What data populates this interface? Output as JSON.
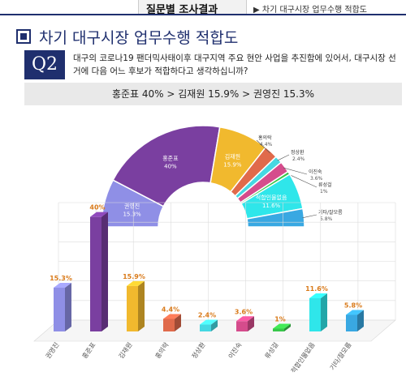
{
  "header": {
    "tab_title": "질문별 조사결과",
    "crumb": "▶ 차기 대구시장 업무수행 적합도"
  },
  "section_title": "차기 대구시장 업무수행 적합도",
  "question": {
    "badge": "Q2",
    "text": "대구의 코로나19 팬더믹사태이후 대구지역 주요 현안 사업을 추진함에 있어서, 대구시장 선거에 다음 어느 후보가 적합하다고 생각하십니까?"
  },
  "result_summary": "홍준표 40% > 김재원 15.9% > 권영진 15.3%",
  "chart_data": [
    {
      "type": "pie",
      "variant": "half-donut",
      "categories": [
        "권영진",
        "홍준표",
        "김재원",
        "홍의락",
        "정상환",
        "이진숙",
        "류성걸",
        "적합인물없음",
        "기타/잘모름"
      ],
      "values": [
        15.3,
        40,
        15.9,
        4.4,
        2.4,
        3.6,
        1,
        11.6,
        5.8
      ],
      "value_labels": [
        "15.3%",
        "40%",
        "15.9%",
        "4.4%",
        "2.4%",
        "3.6%",
        "1%",
        "11.6%",
        "5.8%"
      ],
      "colors": [
        "#8f8fe6",
        "#7a3fa0",
        "#f1b92e",
        "#e06a4b",
        "#45d8e2",
        "#d54c8c",
        "#38c74a",
        "#2fe6ea",
        "#39a8e2"
      ]
    },
    {
      "type": "bar",
      "categories": [
        "권영진",
        "홍준표",
        "김재원",
        "홍의락",
        "정상환",
        "이진숙",
        "류성걸",
        "적합인물없음",
        "기타/잘모름"
      ],
      "values": [
        15.3,
        40,
        15.9,
        4.4,
        2.4,
        3.6,
        1,
        11.6,
        5.8
      ],
      "value_labels": [
        "15.3%",
        "40%",
        "15.9%",
        "4.4%",
        "2.4%",
        "3.6%",
        "1%",
        "11.6%",
        "5.8%"
      ],
      "ylim": [
        0,
        45
      ],
      "grid": true,
      "colors": [
        "#8f8fe6",
        "#7a3fa0",
        "#f1b92e",
        "#e06a4b",
        "#45d8e2",
        "#d54c8c",
        "#38c74a",
        "#2fe6ea",
        "#39a8e2"
      ]
    }
  ]
}
